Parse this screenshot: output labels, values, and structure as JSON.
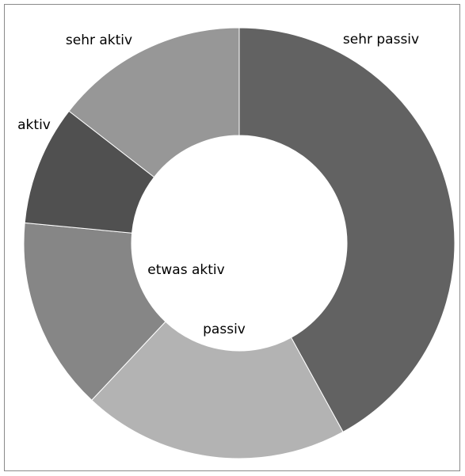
{
  "chart_data": {
    "type": "pie",
    "donut": true,
    "categories": [
      "sehr passiv",
      "passiv",
      "etwas aktiv",
      "aktiv",
      "sehr aktiv"
    ],
    "values": [
      42,
      20,
      14.5,
      9,
      14.5
    ],
    "legend": "none",
    "colors": [
      "#626262",
      "#b3b3b3",
      "#868686",
      "#505050",
      "#979797"
    ]
  }
}
